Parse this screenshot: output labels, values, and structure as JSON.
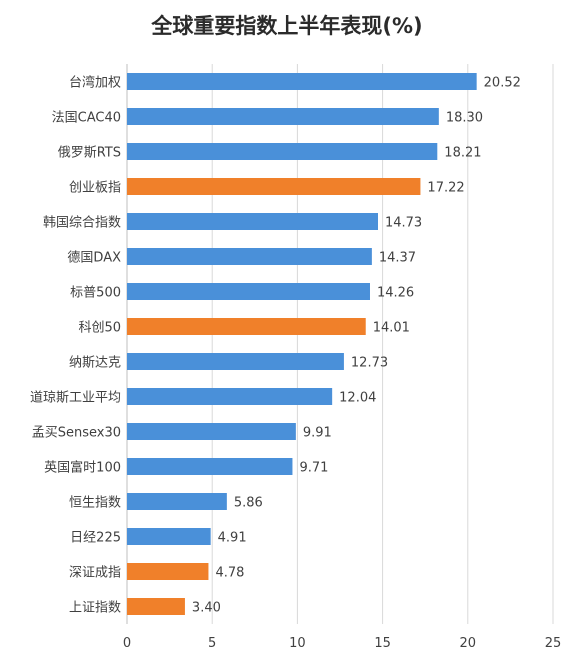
{
  "chart_data": {
    "type": "bar",
    "orientation": "horizontal",
    "title": "全球重要指数上半年表现(%)",
    "xlabel": "",
    "ylabel": "",
    "xlim": [
      0,
      25
    ],
    "x_ticks": [
      0,
      5,
      10,
      15,
      20,
      25
    ],
    "grid": true,
    "legend": "none",
    "categories": [
      "台湾加权",
      "法国CAC40",
      "俄罗斯RTS",
      "创业板指",
      "韩国综合指数",
      "德国DAX",
      "标普500",
      "科创50",
      "纳斯达克",
      "道琼斯工业平均",
      "孟买Sensex30",
      "英国富时100",
      "恒生指数",
      "日经225",
      "深证成指",
      "上证指数"
    ],
    "values": [
      20.52,
      18.3,
      18.21,
      17.22,
      14.73,
      14.37,
      14.26,
      14.01,
      12.73,
      12.04,
      9.91,
      9.71,
      5.86,
      4.91,
      4.78,
      3.4
    ],
    "value_labels": [
      "20.52",
      "18.30",
      "18.21",
      "17.22",
      "14.73",
      "14.37",
      "14.26",
      "14.01",
      "12.73",
      "12.04",
      "9.91",
      "9.71",
      "5.86",
      "4.91",
      "4.78",
      "3.40"
    ],
    "colors": [
      "blue",
      "blue",
      "blue",
      "orange",
      "blue",
      "blue",
      "blue",
      "orange",
      "blue",
      "blue",
      "blue",
      "blue",
      "blue",
      "blue",
      "orange",
      "orange"
    ],
    "palette": {
      "blue": "#4a90d9",
      "orange": "#f0802a",
      "grid": "#d9d9d9",
      "axis_text": "#404040"
    }
  }
}
